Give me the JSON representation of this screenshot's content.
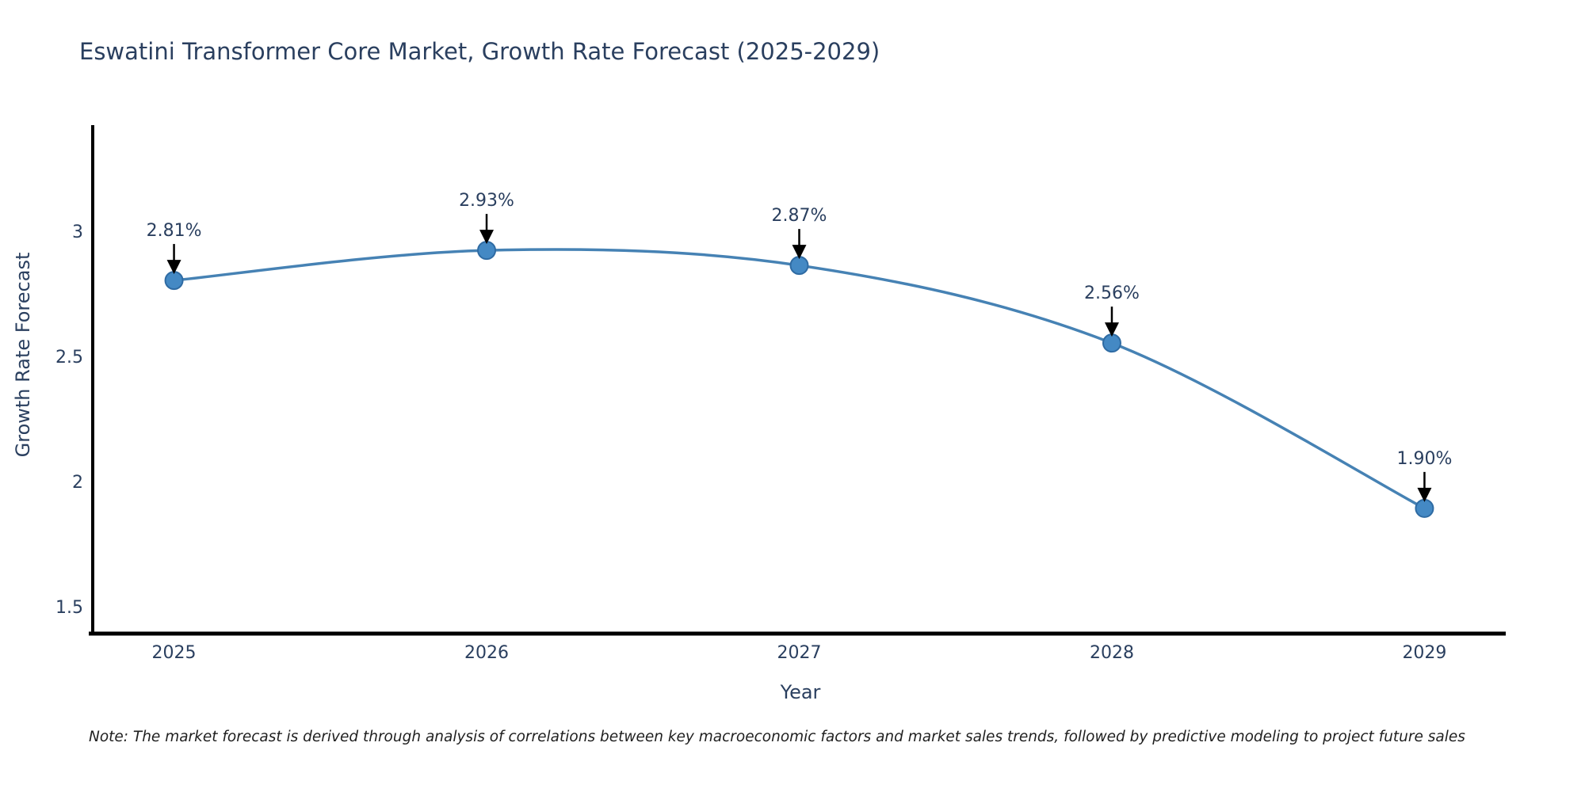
{
  "title": "Eswatini Transformer Core Market, Growth Rate Forecast (2025-2029)",
  "footnote": "Note: The market forecast is derived through analysis of correlations between key macroeconomic factors and market sales trends, followed by predictive modeling to project future sales",
  "chart_data": {
    "type": "line",
    "title": "Eswatini Transformer Core Market, Growth Rate Forecast (2025-2029)",
    "xlabel": "Year",
    "ylabel": "Growth Rate Forecast",
    "x": [
      2025,
      2026,
      2027,
      2028,
      2029
    ],
    "values": [
      2.81,
      2.93,
      2.87,
      2.56,
      1.9
    ],
    "point_labels": [
      "2.81%",
      "2.93%",
      "2.87%",
      "2.56%",
      "1.90%"
    ],
    "x_tick_labels": [
      "2025",
      "2026",
      "2027",
      "2028",
      "2029"
    ],
    "y_ticks": [
      1.5,
      2,
      2.5,
      3
    ],
    "y_tick_labels": [
      "1.5",
      "2",
      "2.5",
      "3"
    ],
    "xlim": [
      2024.74,
      2029.26
    ],
    "ylim": [
      1.4,
      3.43
    ],
    "grid": false,
    "legend": "none",
    "line_shape": "smooth",
    "annotation_style": "value label above point with downward arrow",
    "colors": {
      "line": "#4682b4",
      "marker_fill": "#4489c4",
      "marker_edge": "#2f6ba3",
      "axis": "#000000",
      "text": "#2a3f5f",
      "annotation_arrow": "#000000",
      "background": "#ffffff"
    }
  }
}
